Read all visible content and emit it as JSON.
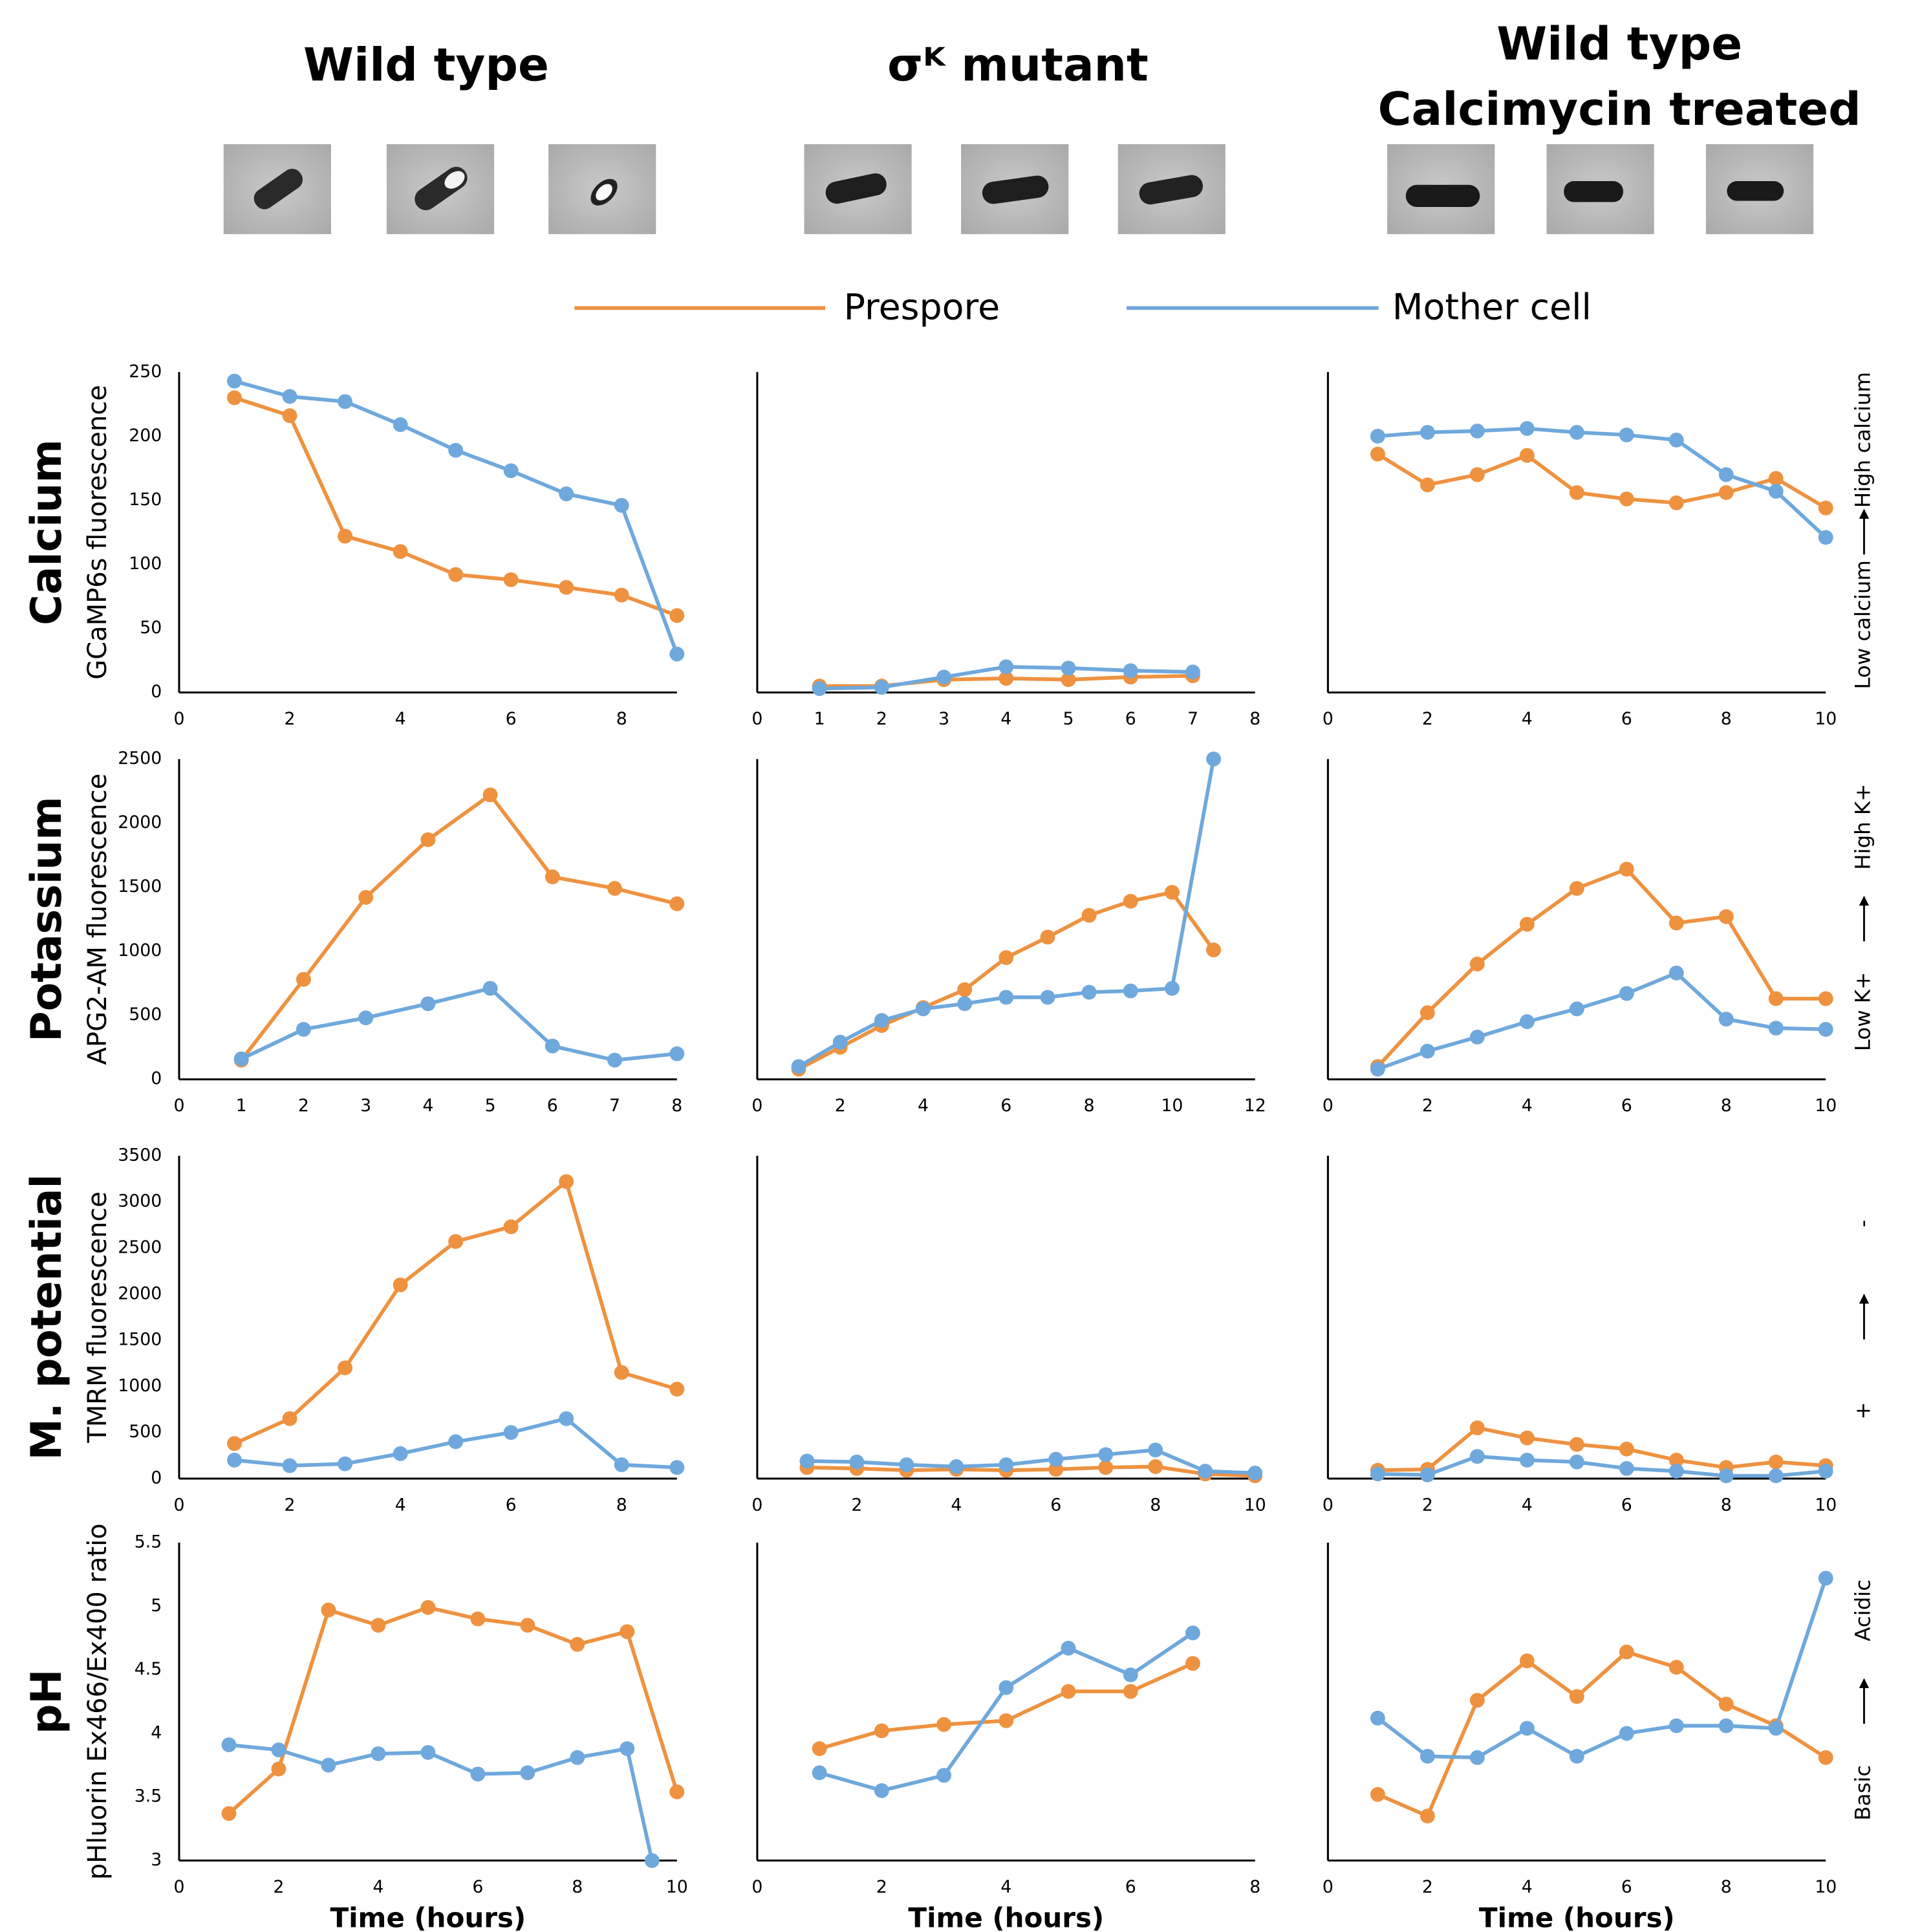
{
  "column_titles": [
    [
      "Wild type"
    ],
    [
      "σᴷ mutant"
    ],
    [
      "Wild type",
      "Calcimycin treated"
    ]
  ],
  "rows": [
    {
      "label": "Calcium",
      "low": "Low calcium",
      "high": "High calcium"
    },
    {
      "label": "Potassium",
      "low": "Low K+",
      "high": "High K+"
    },
    {
      "label": "M. potential",
      "low": "+",
      "high": "-"
    },
    {
      "label": "pH",
      "low": "Basic",
      "high": "Acidic"
    }
  ],
  "chart_data": [
    {
      "type": "line",
      "ylabel": "GCaMP6s fluorescence",
      "x": [
        1,
        2,
        3,
        4,
        5,
        6,
        7,
        8,
        9
      ],
      "series": [
        {
          "name": "Prespore",
          "color": "#ee9240",
          "values": [
            230,
            216,
            122,
            110,
            92,
            88,
            82,
            76,
            60
          ]
        },
        {
          "name": "Mother cell",
          "color": "#6fa8dc",
          "values": [
            243,
            231,
            227,
            209,
            189,
            173,
            155,
            146,
            30
          ]
        }
      ],
      "xlim": [
        0,
        9
      ],
      "xticks": [
        0,
        2,
        4,
        6,
        8
      ],
      "ylim": [
        0,
        250
      ],
      "yticks": [
        0,
        50,
        100,
        150,
        200,
        250
      ]
    },
    {
      "type": "line",
      "x": [
        1,
        2,
        3,
        4,
        5,
        6,
        7
      ],
      "series": [
        {
          "name": "Prespore",
          "color": "#ee9240",
          "values": [
            5,
            5,
            10,
            11,
            10,
            12,
            13
          ]
        },
        {
          "name": "Mother cell",
          "color": "#6fa8dc",
          "values": [
            3,
            4,
            12,
            20,
            19,
            17,
            16
          ]
        }
      ],
      "xlim": [
        0,
        8
      ],
      "xticks": [
        0,
        1,
        2,
        3,
        4,
        5,
        6,
        7,
        8
      ],
      "ylim": [
        0,
        250
      ]
    },
    {
      "type": "line",
      "x": [
        1,
        2,
        3,
        4,
        5,
        6,
        7,
        8,
        9,
        10
      ],
      "series": [
        {
          "name": "Prespore",
          "color": "#ee9240",
          "values": [
            186,
            162,
            170,
            185,
            156,
            151,
            148,
            156,
            167,
            144
          ]
        },
        {
          "name": "Mother cell",
          "color": "#6fa8dc",
          "values": [
            200,
            203,
            204,
            206,
            203,
            201,
            197,
            170,
            157,
            121
          ]
        }
      ],
      "xlim": [
        0,
        10
      ],
      "xticks": [
        0,
        2,
        4,
        6,
        8,
        10
      ],
      "ylim": [
        0,
        250
      ]
    },
    {
      "type": "line",
      "ylabel": "APG2-AM fluorescence",
      "x": [
        1,
        2,
        3,
        4,
        5,
        6,
        7,
        8
      ],
      "series": [
        {
          "name": "Prespore",
          "color": "#ee9240",
          "values": [
            150,
            780,
            1420,
            1870,
            2220,
            1580,
            1490,
            1370
          ]
        },
        {
          "name": "Mother cell",
          "color": "#6fa8dc",
          "values": [
            160,
            390,
            480,
            590,
            710,
            260,
            150,
            200
          ]
        }
      ],
      "xlim": [
        0,
        8
      ],
      "xticks": [
        0,
        1,
        2,
        3,
        4,
        5,
        6,
        7,
        8
      ],
      "ylim": [
        0,
        2500
      ],
      "yticks": [
        0,
        500,
        1000,
        1500,
        2000,
        2500
      ]
    },
    {
      "type": "line",
      "x": [
        1,
        2,
        3,
        4,
        5,
        6,
        7,
        8,
        9,
        10,
        11
      ],
      "series": [
        {
          "name": "Prespore",
          "color": "#ee9240",
          "values": [
            80,
            250,
            420,
            560,
            700,
            950,
            1110,
            1280,
            1390,
            1460,
            1010
          ]
        },
        {
          "name": "Mother cell",
          "color": "#6fa8dc",
          "values": [
            100,
            290,
            460,
            550,
            590,
            640,
            640,
            680,
            690,
            710,
            2500
          ]
        }
      ],
      "xlim": [
        0,
        12
      ],
      "xticks": [
        0,
        2,
        4,
        6,
        8,
        10,
        12
      ],
      "ylim": [
        0,
        2500
      ]
    },
    {
      "type": "line",
      "x": [
        1,
        2,
        3,
        4,
        5,
        6,
        7,
        8,
        9,
        10
      ],
      "series": [
        {
          "name": "Prespore",
          "color": "#ee9240",
          "values": [
            100,
            520,
            900,
            1210,
            1490,
            1640,
            1220,
            1270,
            630,
            630
          ]
        },
        {
          "name": "Mother cell",
          "color": "#6fa8dc",
          "values": [
            80,
            220,
            330,
            450,
            550,
            670,
            830,
            470,
            400,
            390
          ]
        }
      ],
      "xlim": [
        0,
        10
      ],
      "xticks": [
        0,
        2,
        4,
        6,
        8,
        10
      ],
      "ylim": [
        0,
        2500
      ]
    },
    {
      "type": "line",
      "ylabel": "TMRM fluorescence",
      "x": [
        1,
        2,
        3,
        4,
        5,
        6,
        7,
        8,
        9
      ],
      "series": [
        {
          "name": "Prespore",
          "color": "#ee9240",
          "values": [
            380,
            650,
            1200,
            2100,
            2570,
            2730,
            3220,
            1150,
            970
          ]
        },
        {
          "name": "Mother cell",
          "color": "#6fa8dc",
          "values": [
            200,
            140,
            160,
            270,
            400,
            500,
            650,
            150,
            120
          ]
        }
      ],
      "xlim": [
        0,
        9
      ],
      "xticks": [
        0,
        2,
        4,
        6,
        8
      ],
      "ylim": [
        0,
        3500
      ],
      "yticks": [
        0,
        500,
        1000,
        1500,
        2000,
        2500,
        3000,
        3500
      ]
    },
    {
      "type": "line",
      "x": [
        1,
        2,
        3,
        4,
        5,
        6,
        7,
        8,
        9,
        10
      ],
      "series": [
        {
          "name": "Prespore",
          "color": "#ee9240",
          "values": [
            120,
            110,
            90,
            100,
            90,
            100,
            120,
            130,
            50,
            30
          ]
        },
        {
          "name": "Mother cell",
          "color": "#6fa8dc",
          "values": [
            190,
            180,
            150,
            130,
            150,
            210,
            260,
            310,
            80,
            60
          ]
        }
      ],
      "xlim": [
        0,
        10
      ],
      "xticks": [
        0,
        2,
        4,
        6,
        8,
        10
      ],
      "ylim": [
        0,
        3500
      ]
    },
    {
      "type": "line",
      "x": [
        1,
        2,
        3,
        4,
        5,
        6,
        7,
        8,
        9,
        10
      ],
      "series": [
        {
          "name": "Prespore",
          "color": "#ee9240",
          "values": [
            90,
            100,
            550,
            440,
            370,
            320,
            200,
            120,
            180,
            140
          ]
        },
        {
          "name": "Mother cell",
          "color": "#6fa8dc",
          "values": [
            50,
            40,
            240,
            200,
            180,
            110,
            80,
            30,
            30,
            80
          ]
        }
      ],
      "xlim": [
        0,
        10
      ],
      "xticks": [
        0,
        2,
        4,
        6,
        8,
        10
      ],
      "ylim": [
        0,
        3500
      ]
    },
    {
      "type": "line",
      "ylabel": "pHluorin Ex466/Ex400 ratio",
      "xlabel": "Time (hours)",
      "x": [
        1,
        2,
        3,
        4,
        5,
        6,
        7,
        8,
        9,
        10
      ],
      "series": [
        {
          "name": "Prespore",
          "color": "#ee9240",
          "values": [
            3.37,
            3.72,
            4.97,
            4.85,
            4.99,
            4.9,
            4.85,
            4.7,
            4.8,
            3.54
          ]
        },
        {
          "name": "Mother cell",
          "color": "#6fa8dc",
          "x": [
            1,
            2,
            3,
            4,
            5,
            6,
            7,
            8,
            9,
            9.5
          ],
          "values": [
            3.91,
            3.87,
            3.75,
            3.84,
            3.85,
            3.68,
            3.69,
            3.81,
            3.88,
            3
          ]
        }
      ],
      "xlim": [
        0,
        10
      ],
      "xticks": [
        0,
        2,
        4,
        6,
        8,
        10
      ],
      "ylim": [
        3,
        5.5
      ],
      "yticks": [
        3,
        3.5,
        4,
        4.5,
        5,
        5.5
      ]
    },
    {
      "type": "line",
      "xlabel": "Time (hours)",
      "x": [
        1,
        2,
        3,
        4,
        5,
        6,
        7
      ],
      "series": [
        {
          "name": "Prespore",
          "color": "#ee9240",
          "values": [
            3.88,
            4.02,
            4.07,
            4.1,
            4.33,
            4.33,
            4.55
          ]
        },
        {
          "name": "Mother cell",
          "color": "#6fa8dc",
          "values": [
            3.69,
            3.55,
            3.67,
            4.36,
            4.67,
            4.46,
            4.79
          ]
        }
      ],
      "xlim": [
        0,
        8
      ],
      "xticks": [
        0,
        2,
        4,
        6,
        8
      ],
      "ylim": [
        3,
        5.5
      ]
    },
    {
      "type": "line",
      "xlabel": "Time (hours)",
      "x": [
        1,
        2,
        3,
        4,
        5,
        6,
        7,
        8,
        9,
        10
      ],
      "series": [
        {
          "name": "Prespore",
          "color": "#ee9240",
          "values": [
            3.52,
            3.35,
            4.26,
            4.57,
            4.29,
            4.64,
            4.52,
            4.23,
            4.06,
            3.81
          ]
        },
        {
          "name": "Mother cell",
          "color": "#6fa8dc",
          "values": [
            4.12,
            3.82,
            3.81,
            4.04,
            3.82,
            4.0,
            4.06,
            4.06,
            4.04,
            5.22
          ]
        }
      ],
      "xlim": [
        0,
        10
      ],
      "xticks": [
        0,
        2,
        4,
        6,
        8,
        10
      ],
      "ylim": [
        3,
        5.5
      ]
    }
  ]
}
